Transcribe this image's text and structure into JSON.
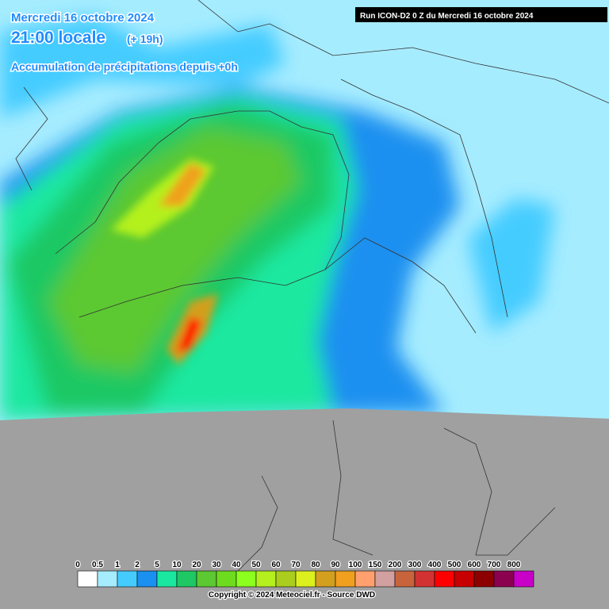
{
  "header": {
    "date": "Mercredi 16 octobre 2024",
    "time": "21:00 locale",
    "offset": "(+ 19h)",
    "subtitle": "Accumulation de précipitations depuis +0h",
    "run": "Run ICON-D2 0 Z du Mercredi 16 octobre 2024"
  },
  "legend": {
    "items": [
      {
        "label": "0",
        "color": "#ffffff"
      },
      {
        "label": "0.5",
        "color": "#a6ecff"
      },
      {
        "label": "1",
        "color": "#45ccff"
      },
      {
        "label": "2",
        "color": "#1a90f0"
      },
      {
        "label": "5",
        "color": "#1ae8a0"
      },
      {
        "label": "10",
        "color": "#1ec864"
      },
      {
        "label": "20",
        "color": "#5cc832"
      },
      {
        "label": "30",
        "color": "#6edc1e"
      },
      {
        "label": "40",
        "color": "#8cff1e"
      },
      {
        "label": "50",
        "color": "#b4f01e"
      },
      {
        "label": "60",
        "color": "#aacd1e"
      },
      {
        "label": "70",
        "color": "#dcf01e"
      },
      {
        "label": "80",
        "color": "#d2a01e"
      },
      {
        "label": "90",
        "color": "#f0a01e"
      },
      {
        "label": "100",
        "color": "#ffa06e"
      },
      {
        "label": "150",
        "color": "#d2a0a0"
      },
      {
        "label": "200",
        "color": "#c8643c"
      },
      {
        "label": "300",
        "color": "#d23232"
      },
      {
        "label": "400",
        "color": "#ff0000"
      },
      {
        "label": "500",
        "color": "#c80000"
      },
      {
        "label": "600",
        "color": "#8c0000"
      },
      {
        "label": "700",
        "color": "#8c0050"
      },
      {
        "label": "800",
        "color": "#c800c8"
      }
    ]
  },
  "copyright": "Copyright © 2024 Meteociel.fr - Source DWD"
}
